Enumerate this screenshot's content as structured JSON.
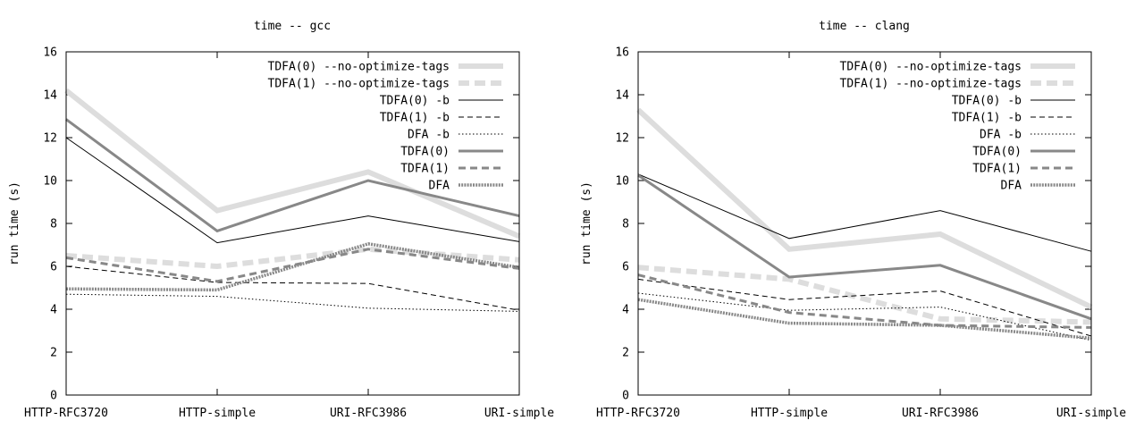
{
  "chart_data": [
    {
      "type": "line",
      "title": "time -- gcc",
      "xlabel": "",
      "ylabel": "run time (s)",
      "categories": [
        "HTTP-RFC3720",
        "HTTP-simple",
        "URI-RFC3986",
        "URI-simple"
      ],
      "ylim": [
        0,
        16
      ],
      "yticks": [
        "0",
        "2",
        "4",
        "6",
        "8",
        "10",
        "12",
        "14",
        "16"
      ],
      "legend_position": "top-right",
      "series": [
        {
          "name": "TDFA(0) --no-optimize-tags",
          "style": "thick-light-solid",
          "values": [
            14.2,
            8.6,
            10.4,
            7.4
          ]
        },
        {
          "name": "TDFA(1) --no-optimize-tags",
          "style": "thick-light-dashed",
          "values": [
            6.5,
            6.0,
            6.8,
            6.3
          ]
        },
        {
          "name": "TDFA(0) -b",
          "style": "thin-solid",
          "values": [
            12.0,
            7.1,
            8.35,
            7.15
          ]
        },
        {
          "name": "TDFA(1) -b",
          "style": "thin-dashed",
          "values": [
            6.0,
            5.25,
            5.2,
            3.95
          ]
        },
        {
          "name": "DFA -b",
          "style": "thin-dotted",
          "values": [
            4.7,
            4.6,
            4.05,
            3.9
          ]
        },
        {
          "name": "TDFA(0)",
          "style": "medium-solid",
          "values": [
            12.85,
            7.65,
            10.0,
            8.35
          ]
        },
        {
          "name": "TDFA(1)",
          "style": "medium-dashed",
          "values": [
            6.4,
            5.3,
            6.8,
            5.9
          ]
        },
        {
          "name": "DFA",
          "style": "medium-dotted",
          "values": [
            4.95,
            4.9,
            7.05,
            5.95
          ]
        }
      ]
    },
    {
      "type": "line",
      "title": "time -- clang",
      "xlabel": "",
      "ylabel": "run time (s)",
      "categories": [
        "HTTP-RFC3720",
        "HTTP-simple",
        "URI-RFC3986",
        "URI-simple"
      ],
      "ylim": [
        0,
        16
      ],
      "yticks": [
        "0",
        "2",
        "4",
        "6",
        "8",
        "10",
        "12",
        "14",
        "16"
      ],
      "legend_position": "top-right",
      "series": [
        {
          "name": "TDFA(0) --no-optimize-tags",
          "style": "thick-light-solid",
          "values": [
            13.3,
            6.8,
            7.5,
            4.1
          ]
        },
        {
          "name": "TDFA(1) --no-optimize-tags",
          "style": "thick-light-dashed",
          "values": [
            5.95,
            5.4,
            3.55,
            3.4
          ]
        },
        {
          "name": "TDFA(0) -b",
          "style": "thin-solid",
          "values": [
            10.3,
            7.3,
            8.6,
            6.7
          ]
        },
        {
          "name": "TDFA(1) -b",
          "style": "thin-dashed",
          "values": [
            5.4,
            4.45,
            4.85,
            2.75
          ]
        },
        {
          "name": "DFA -b",
          "style": "thin-dotted",
          "values": [
            4.75,
            3.95,
            4.1,
            2.55
          ]
        },
        {
          "name": "TDFA(0)",
          "style": "medium-solid",
          "values": [
            10.25,
            5.5,
            6.05,
            3.55
          ]
        },
        {
          "name": "TDFA(1)",
          "style": "medium-dashed",
          "values": [
            5.6,
            3.85,
            3.25,
            3.15
          ]
        },
        {
          "name": "DFA",
          "style": "medium-dotted",
          "values": [
            4.45,
            3.35,
            3.25,
            2.65
          ]
        }
      ]
    }
  ]
}
